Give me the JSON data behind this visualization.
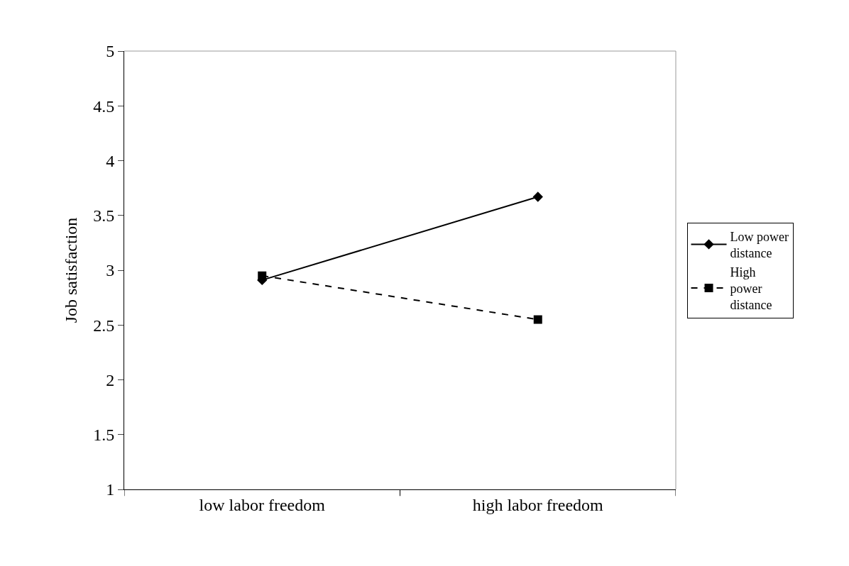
{
  "chart_data": {
    "type": "line",
    "ylabel": "Job satisfaction",
    "categories": [
      "low labor freedom",
      "high labor freedom"
    ],
    "series": [
      {
        "name": "Low power distance",
        "color": "#000000",
        "values": [
          2.91,
          3.67
        ],
        "marker": "diamond",
        "line_style": "solid"
      },
      {
        "name": "High power distance",
        "color": "#000000",
        "values": [
          2.95,
          2.55
        ],
        "marker": "square",
        "line_style": "dashed"
      }
    ],
    "ylim": [
      1,
      5
    ],
    "yticks": [
      1,
      1.5,
      2,
      2.5,
      3,
      3.5,
      4,
      4.5,
      5
    ],
    "grid": false,
    "legend": "right"
  }
}
